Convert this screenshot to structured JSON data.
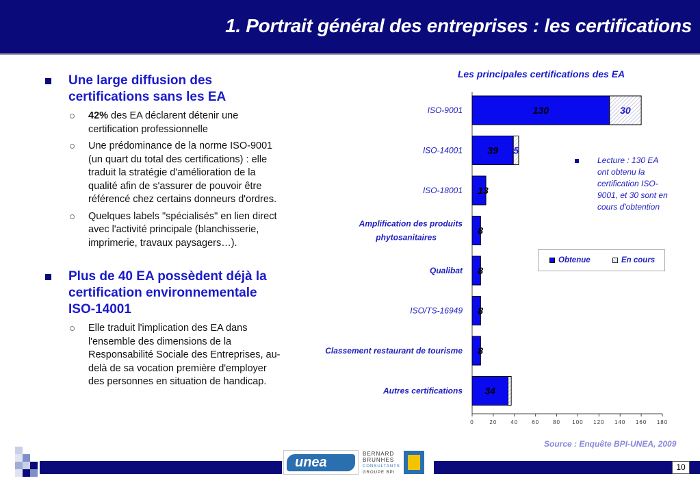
{
  "header": {
    "title": "1. Portrait général des entreprises : les certifications"
  },
  "left": {
    "sections": [
      {
        "heading": "Une large diffusion des certifications sans les EA",
        "items": [
          {
            "bold": "42%",
            "text": " des EA déclarent détenir une certification professionnelle"
          },
          {
            "bold": "",
            "text": "Une prédominance de la norme ISO-9001 (un quart du total des certifications) : elle traduit la stratégie d'amélioration de la qualité afin de s'assurer de pouvoir être référencé chez certains donneurs d'ordres."
          },
          {
            "bold": "",
            "text": "Quelques labels \"spécialisés\" en lien direct avec l'activité principale (blanchisserie, imprimerie, travaux paysagers…)."
          }
        ]
      },
      {
        "heading": "Plus de 40 EA possèdent déjà la certification environnementale ISO-14001",
        "items": [
          {
            "bold": "",
            "text": "Elle traduit l'implication des EA dans l'ensemble des dimensions de la Responsabilité Sociale des Entreprises, au-delà de sa vocation première d'employer des personnes en situation de handicap."
          }
        ]
      }
    ]
  },
  "chart_data": {
    "type": "bar",
    "orientation": "horizontal",
    "stacked": true,
    "title": "Les principales certifications des EA",
    "categories": [
      "ISO-9001",
      "ISO-14001",
      "ISO-18001",
      "Amplification des produits phytosanitaires",
      "Qualibat",
      "ISO/TS-16949",
      "Classement restaurant de tourisme",
      "Autres certifications"
    ],
    "series": [
      {
        "name": "Obtenue",
        "values": [
          130,
          39,
          13,
          8,
          8,
          8,
          8,
          34
        ],
        "color": "#0a0aee"
      },
      {
        "name": "En cours",
        "values": [
          30,
          5,
          0,
          0,
          0,
          0,
          0,
          3
        ],
        "color": "#d8d8ee"
      }
    ],
    "data_labels": [
      [
        "130",
        "30"
      ],
      [
        "39",
        "5"
      ],
      [
        "13",
        ""
      ],
      [
        "8",
        ""
      ],
      [
        "8",
        ""
      ],
      [
        "8",
        ""
      ],
      [
        "8",
        ""
      ],
      [
        "34",
        ""
      ]
    ],
    "xlim": [
      0,
      180
    ],
    "xticks": [
      0,
      20,
      40,
      60,
      80,
      100,
      120,
      140,
      160,
      180
    ],
    "grid": false,
    "legend_position": "right"
  },
  "note": "Lecture : 130 EA ont obtenu la certification ISO-9001, et 30 sont en cours d'obtention",
  "source": "Source : Enquête BPI-UNEA, 2009",
  "footer": {
    "page_number": "10",
    "logo_unea": "unea",
    "logo_bb_line1": "BERNARD",
    "logo_bb_line2": "BRUNHES",
    "logo_bb_line3": "CONSULTANTS",
    "logo_bb_line4": "GROUPE BPI"
  },
  "colors": {
    "header_bg": "#0a0a7a",
    "accent_text": "#1a1acc",
    "bar_obtenue": "#0a0aee"
  }
}
